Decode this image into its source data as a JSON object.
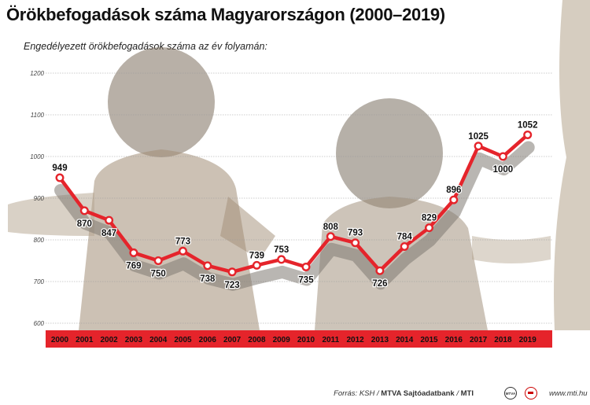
{
  "title": "Örökbefogadások száma Magyarországon (2000–2019)",
  "subtitle": "Engedélyezett örökbefogadások száma az év folyamán:",
  "footer": {
    "source_prefix": "Forrás: KSH / ",
    "source_bold": "MTVA Sajtóadatbank",
    "source_sep": " / ",
    "source_mti": "MTI",
    "site": "www.mti.hu",
    "logo_text": "MTVA"
  },
  "colors": {
    "line": "#e5242b",
    "shadow": "#807a72",
    "xbar": "#e5242b",
    "photo": "#c8b9a4"
  },
  "chart_data": {
    "type": "line",
    "categories": [
      "2000",
      "2001",
      "2002",
      "2003",
      "2004",
      "2005",
      "2006",
      "2007",
      "2008",
      "2009",
      "2010",
      "2011",
      "2012",
      "2013",
      "2014",
      "2015",
      "2016",
      "2017",
      "2018",
      "2019"
    ],
    "values": [
      949,
      870,
      847,
      769,
      750,
      773,
      738,
      723,
      739,
      753,
      735,
      808,
      793,
      726,
      784,
      829,
      896,
      1025,
      1000,
      1052
    ],
    "labels": [
      "949",
      "870",
      "847",
      "769",
      "750",
      "773",
      "738",
      "723",
      "739",
      "753",
      "735",
      "808",
      "793",
      "726",
      "784",
      "829",
      "896",
      "1025",
      "1000",
      "1052"
    ],
    "yticks": [
      600,
      700,
      800,
      900,
      1000,
      1100,
      1200
    ],
    "ylim": [
      600,
      1200
    ],
    "grid": true
  }
}
